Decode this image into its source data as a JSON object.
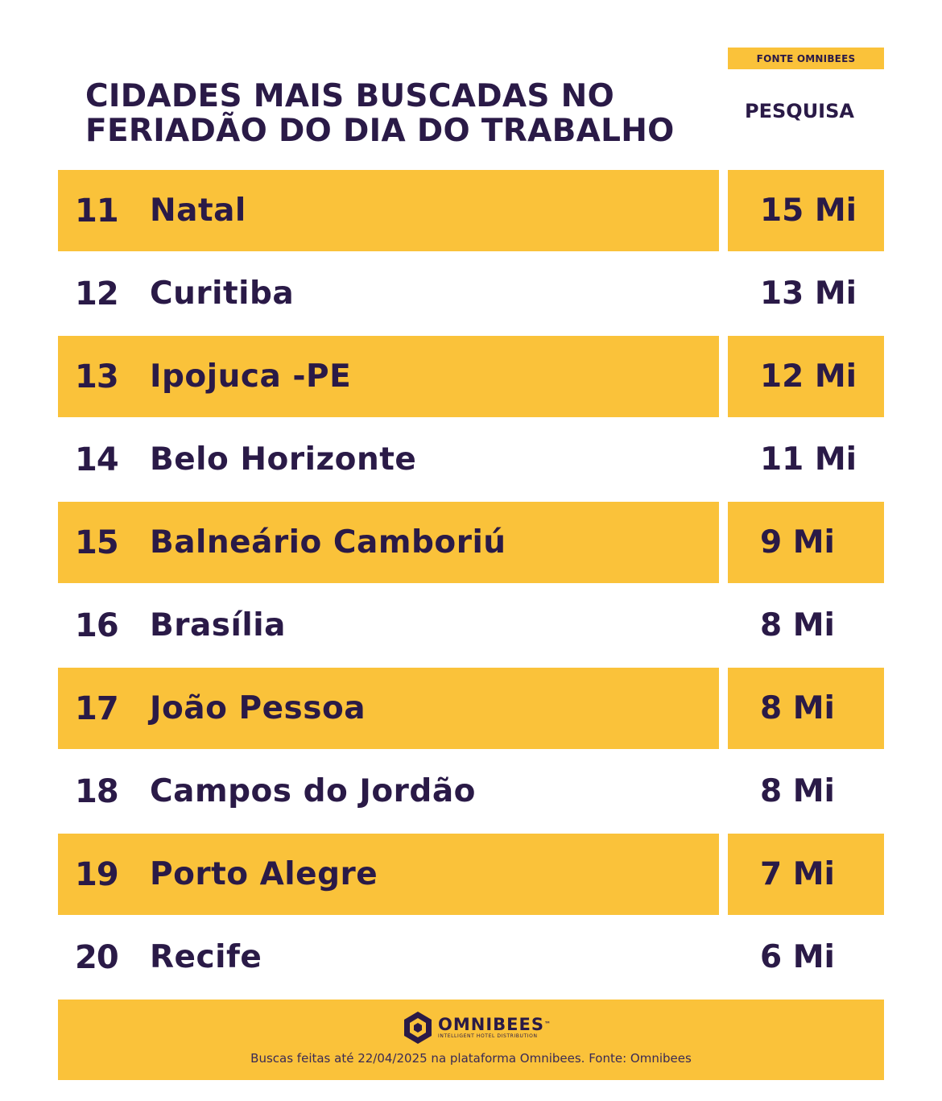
{
  "source_badge": "FONTE OMNIBEES",
  "title_lines": [
    "CIDADES MAIS BUSCADAS NO",
    "FERIADÃO DO DIA DO TRABALHO"
  ],
  "column_header": "PESQUISA",
  "rows": [
    {
      "rank": "11",
      "city": "Natal",
      "value": "15 Mi",
      "highlight": true
    },
    {
      "rank": "12",
      "city": "Curitiba",
      "value": "13 Mi",
      "highlight": false
    },
    {
      "rank": "13",
      "city": "Ipojuca -PE",
      "value": "12 Mi",
      "highlight": true
    },
    {
      "rank": "14",
      "city": "Belo Horizonte",
      "value": "11 Mi",
      "highlight": false
    },
    {
      "rank": "15",
      "city": "Balneário Camboriú",
      "value": "9 Mi",
      "highlight": true
    },
    {
      "rank": "16",
      "city": "Brasília",
      "value": "8 Mi",
      "highlight": false
    },
    {
      "rank": "17",
      "city": "João Pessoa",
      "value": "8 Mi",
      "highlight": true
    },
    {
      "rank": "18",
      "city": "Campos do Jordão",
      "value": "8 Mi",
      "highlight": false
    },
    {
      "rank": "19",
      "city": "Porto Alegre",
      "value": "7 Mi",
      "highlight": true
    },
    {
      "rank": "20",
      "city": "Recife",
      "value": "6 Mi",
      "highlight": false
    }
  ],
  "footer": {
    "logo_name": "OMNIBEES",
    "logo_mark": "™",
    "logo_tagline": "INTELLIGENT HOTEL DISTRIBUTION",
    "logo_icon": "hexagon-logo-icon",
    "note": "Buscas feitas até 22/04/2025 na plataforma Omnibees. Fonte: Omnibees"
  },
  "colors": {
    "accent": "#fac23a",
    "text": "#2a1a47",
    "background": "#ffffff"
  }
}
